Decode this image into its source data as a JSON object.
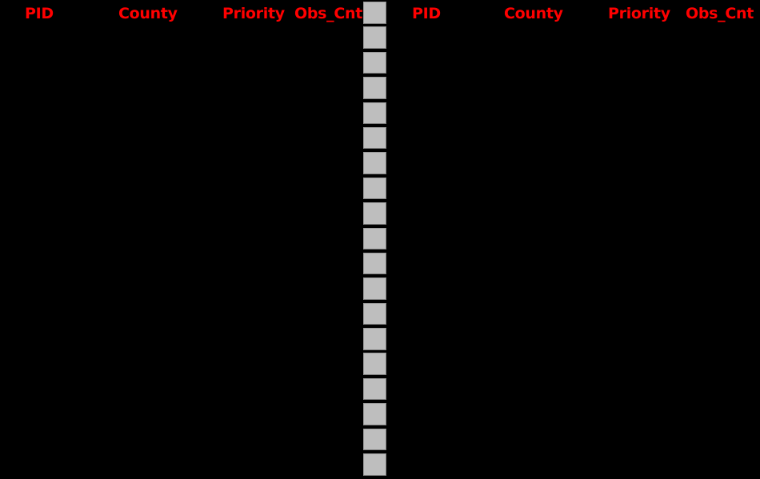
{
  "canvas": {
    "background_color": "#000000"
  },
  "colors": {
    "header_text": "#FF0000",
    "selector_fill": "#BEBEBE",
    "selector_border": "#7F7F7F"
  },
  "left_table": {
    "columns": [
      "PID",
      "County",
      "Priority",
      "Obs_Cnt"
    ]
  },
  "right_table": {
    "columns": [
      "PID",
      "County",
      "Priority",
      "Obs_Cnt"
    ]
  },
  "row_selector_column": {
    "count": 19
  }
}
